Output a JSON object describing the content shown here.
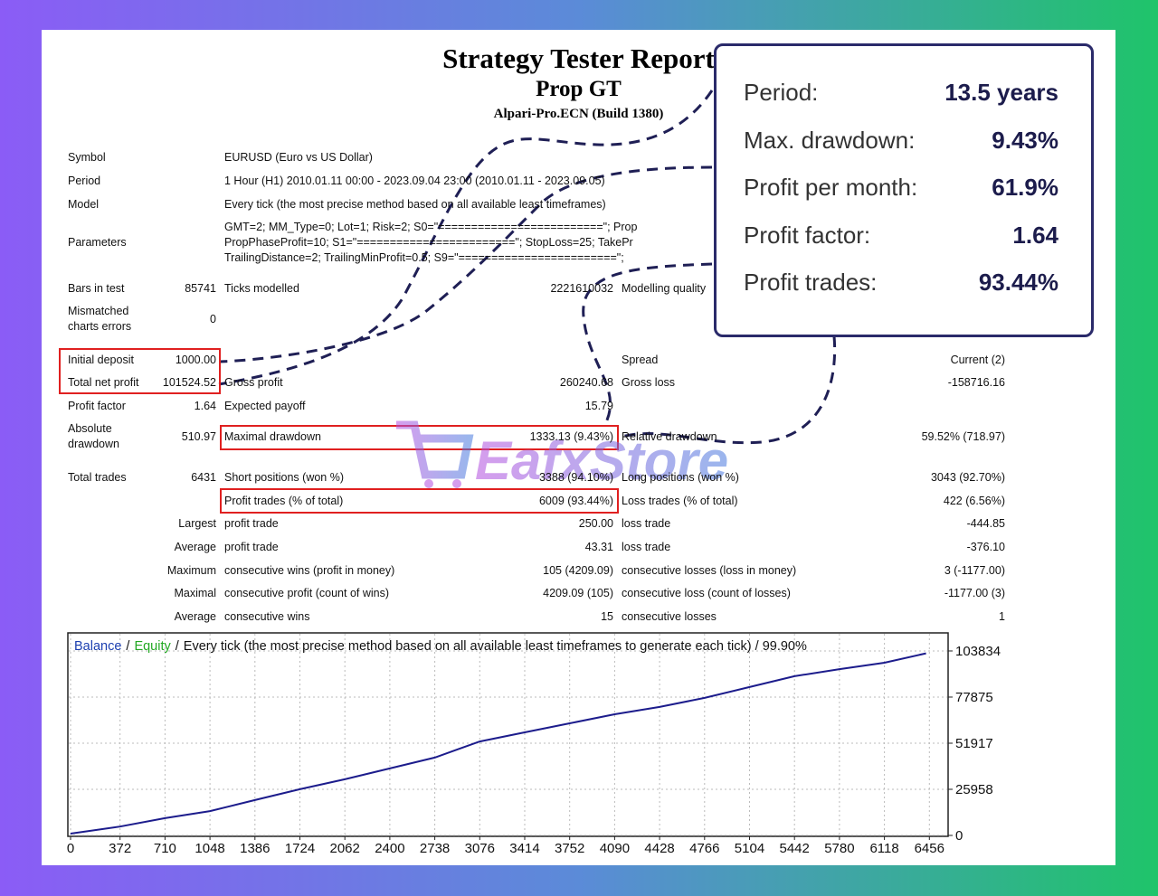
{
  "header": {
    "title": "Strategy Tester Report",
    "subtitle": "Prop GT",
    "broker": "Alpari-Pro.ECN (Build 1380)"
  },
  "report": {
    "rows": [
      [
        "Symbol",
        "EURUSD (Euro vs US Dollar)"
      ],
      [
        "Period",
        "1 Hour (H1) 2010.01.11 00:00 - 2023.09.04 23:00 (2010.01.11 - 2023.09.05)"
      ],
      [
        "Model",
        "Every tick (the most precise method based on all available least timeframes)"
      ],
      [
        "Parameters",
        "GMT=2; MM_Type=0; Lot=1; Risk=2; S0=\"=========================\"; Prop",
        "PropPhaseProfit=10; S1=\"========================\"; StopLoss=25; TakePr",
        "TrailingDistance=2; TrailingMinProfit=0.5; S9=\"========================\";"
      ],
      [
        "Bars in test",
        "85741",
        "Ticks modelled",
        "2221610032",
        "Modelling quality"
      ],
      [
        "Mismatched charts errors",
        "0"
      ],
      [
        "Initial deposit",
        "1000.00",
        "Spread",
        "Current (2)"
      ],
      [
        "Total net profit",
        "101524.52",
        "Gross profit",
        "260240.68",
        "Gross loss",
        "-158716.16"
      ],
      [
        "Profit factor",
        "1.64",
        "Expected payoff",
        "15.79"
      ],
      [
        "Absolute drawdown",
        "510.97",
        "Maximal drawdown",
        "1333.13 (9.43%)",
        "Relative drawdown",
        "59.52% (718.97)"
      ],
      [
        "Total trades",
        "6431",
        "Short positions (won %)",
        "3388 (94.10%)",
        "Long positions (won %)",
        "3043 (92.70%)"
      ],
      [
        "Profit trades (% of total)",
        "6009 (93.44%)",
        "Loss trades (% of total)",
        "422 (6.56%)"
      ],
      [
        "Largest",
        "profit trade",
        "250.00",
        "loss trade",
        "-444.85"
      ],
      [
        "Average",
        "profit trade",
        "43.31",
        "loss trade",
        "-376.10"
      ],
      [
        "Maximum",
        "consecutive wins (profit in money)",
        "105 (4209.09)",
        "consecutive losses (loss in money)",
        "3 (-1177.00)"
      ],
      [
        "Maximal",
        "consecutive profit (count of wins)",
        "4209.09 (105)",
        "consecutive loss (count of losses)",
        "-1177.00 (3)"
      ],
      [
        "Average",
        "consecutive wins",
        "15",
        "consecutive losses",
        "1"
      ]
    ]
  },
  "callout": {
    "items": [
      {
        "label": "Period:",
        "value": "13.5 years"
      },
      {
        "label": "Max. drawdown:",
        "value": "9.43%"
      },
      {
        "label": "Profit per month:",
        "value": "61.9%"
      },
      {
        "label": "Profit factor:",
        "value": "1.64"
      },
      {
        "label": "Profit trades:",
        "value": "93.44%"
      }
    ]
  },
  "watermark": "EafxStore",
  "chart_data": {
    "type": "line",
    "separator": "/",
    "equity_label": "Equity",
    "equity_color": "#22a822",
    "subtitle": "Every tick (the most precise method based on all available least timeframes to generate each tick) / 99.90%",
    "x": [
      0,
      372,
      710,
      1048,
      1386,
      1724,
      2062,
      2400,
      2738,
      3076,
      3414,
      3752,
      4090,
      4428,
      4766,
      5104,
      5442,
      5780,
      6118,
      6431
    ],
    "series": [
      {
        "name": "Balance",
        "color": "#1c1c8c",
        "values": [
          1000,
          5000,
          9700,
          13700,
          19900,
          26000,
          31600,
          37700,
          43800,
          52900,
          58000,
          63100,
          68200,
          72300,
          77400,
          83500,
          89600,
          93600,
          97200,
          102500
        ]
      }
    ],
    "xlim": [
      0,
      6590
    ],
    "ylim": [
      0,
      114000
    ],
    "xticks": [
      0,
      372,
      710,
      1048,
      1386,
      1724,
      2062,
      2400,
      2738,
      3076,
      3414,
      3752,
      4090,
      4428,
      4766,
      5104,
      5442,
      5780,
      6118,
      6456
    ],
    "yticks": [
      0,
      25958,
      51917,
      77875,
      103834
    ],
    "grid": true
  }
}
